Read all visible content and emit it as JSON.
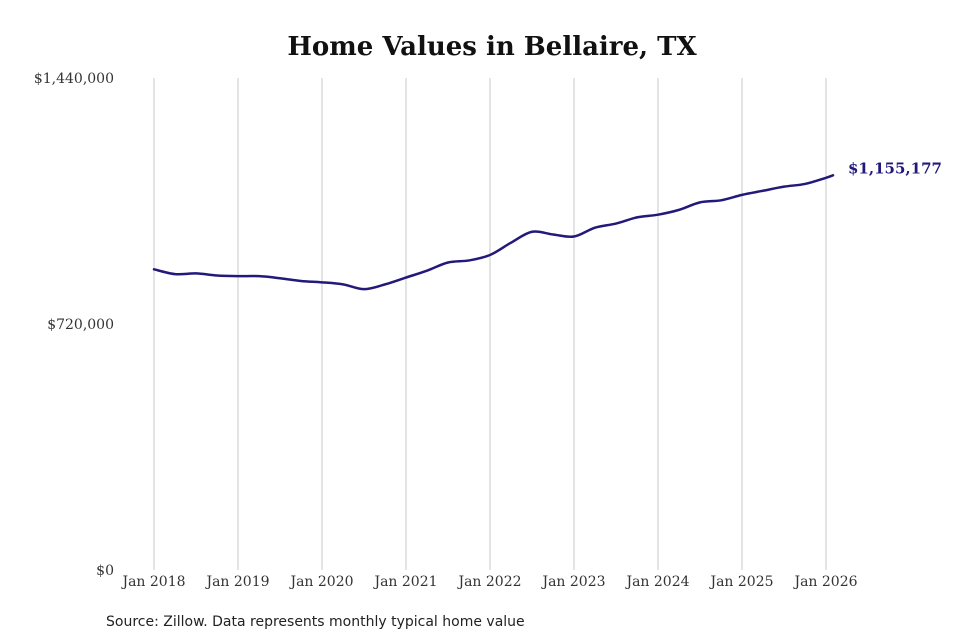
{
  "chart_data": {
    "type": "line",
    "title": "Home Values in Bellaire, TX",
    "xlabel": "",
    "ylabel": "",
    "ylim": [
      0,
      1440000
    ],
    "y_ticks": [
      {
        "value": 0,
        "label": "$0"
      },
      {
        "value": 720000,
        "label": "$720,000"
      },
      {
        "value": 1440000,
        "label": "$1,440,000"
      }
    ],
    "x_ticks": [
      {
        "value": "2018-01",
        "label": "Jan 2018"
      },
      {
        "value": "2019-01",
        "label": "Jan 2019"
      },
      {
        "value": "2020-01",
        "label": "Jan 2020"
      },
      {
        "value": "2021-01",
        "label": "Jan 2021"
      },
      {
        "value": "2022-01",
        "label": "Jan 2022"
      },
      {
        "value": "2023-01",
        "label": "Jan 2023"
      },
      {
        "value": "2024-01",
        "label": "Jan 2024"
      },
      {
        "value": "2025-01",
        "label": "Jan 2025"
      },
      {
        "value": "2026-01",
        "label": "Jan 2026"
      }
    ],
    "grid": "vertical",
    "series": [
      {
        "color": "#22197a",
        "points": [
          [
            "2018-01",
            880000
          ],
          [
            "2018-04",
            866000
          ],
          [
            "2018-07",
            868000
          ],
          [
            "2018-10",
            862000
          ],
          [
            "2019-01",
            860000
          ],
          [
            "2019-04",
            860000
          ],
          [
            "2019-07",
            854000
          ],
          [
            "2019-10",
            846000
          ],
          [
            "2020-01",
            842000
          ],
          [
            "2020-04",
            836000
          ],
          [
            "2020-07",
            822000
          ],
          [
            "2020-10",
            836000
          ],
          [
            "2021-01",
            856000
          ],
          [
            "2021-04",
            876000
          ],
          [
            "2021-07",
            900000
          ],
          [
            "2021-10",
            906000
          ],
          [
            "2022-01",
            922000
          ],
          [
            "2022-04",
            958000
          ],
          [
            "2022-07",
            990000
          ],
          [
            "2022-10",
            982000
          ],
          [
            "2023-01",
            976000
          ],
          [
            "2023-04",
            1002000
          ],
          [
            "2023-07",
            1014000
          ],
          [
            "2023-10",
            1032000
          ],
          [
            "2024-01",
            1040000
          ],
          [
            "2024-04",
            1054000
          ],
          [
            "2024-07",
            1076000
          ],
          [
            "2024-10",
            1082000
          ],
          [
            "2025-01",
            1098000
          ],
          [
            "2025-04",
            1110000
          ],
          [
            "2025-07",
            1122000
          ],
          [
            "2025-10",
            1130000
          ],
          [
            "2026-01",
            1148000
          ],
          [
            "2026-02",
            1155177
          ]
        ],
        "end_label": "$1,155,177"
      }
    ],
    "source": "Source: Zillow. Data represents monthly typical home value"
  }
}
